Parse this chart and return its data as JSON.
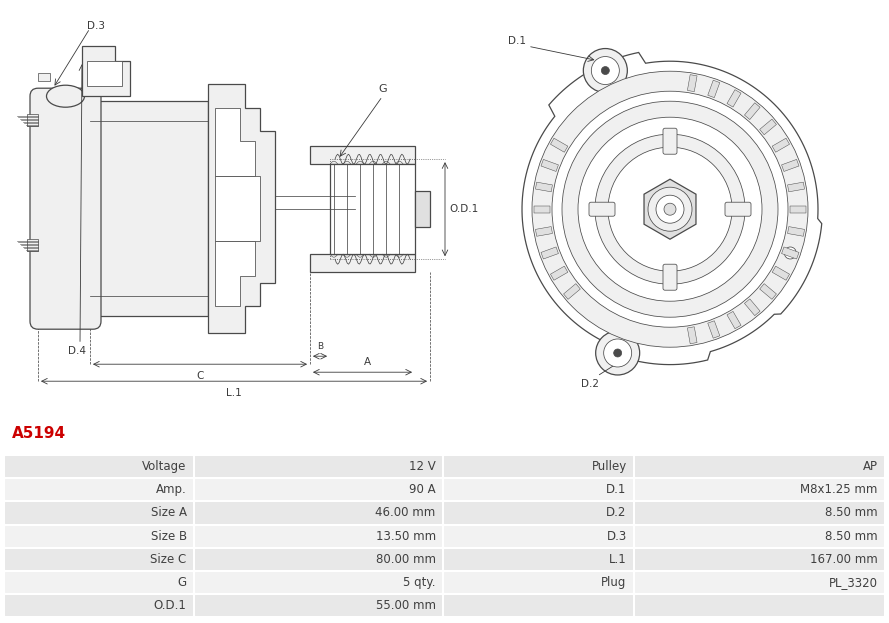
{
  "title": "A5194",
  "title_color": "#cc0000",
  "bg_color": "#ffffff",
  "table_row_bg1": "#e8e8e8",
  "table_row_bg2": "#f2f2f2",
  "table_border_color": "#ffffff",
  "left_col": [
    "Voltage",
    "Amp.",
    "Size A",
    "Size B",
    "Size C",
    "G",
    "O.D.1"
  ],
  "mid_col": [
    "12 V",
    "90 A",
    "46.00 mm",
    "13.50 mm",
    "80.00 mm",
    "5 qty.",
    "55.00 mm"
  ],
  "right_label_col": [
    "Pulley",
    "D.1",
    "D.2",
    "D.3",
    "L.1",
    "Plug",
    ""
  ],
  "right_val_col": [
    "AP",
    "M8x1.25 mm",
    "8.50 mm",
    "8.50 mm",
    "167.00 mm",
    "PL_3320",
    ""
  ],
  "font_size_table": 8.5,
  "font_size_title": 11
}
